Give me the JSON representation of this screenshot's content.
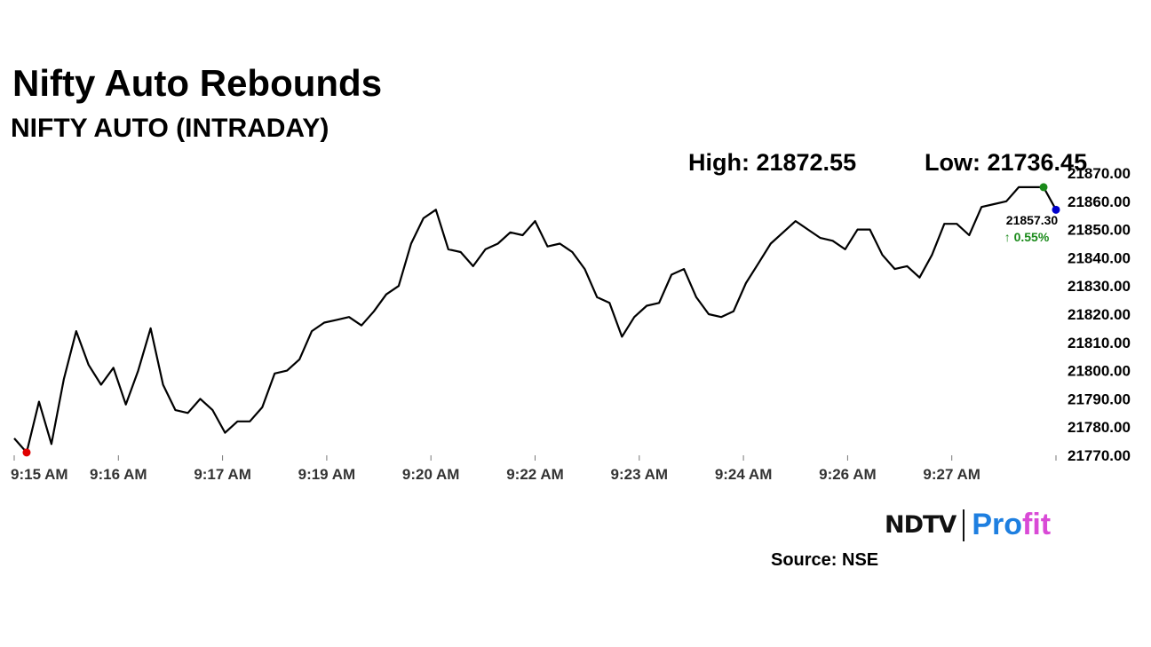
{
  "header": {
    "title": "Nifty Auto Rebounds",
    "subtitle": "NIFTY AUTO (INTRADAY)"
  },
  "stats": {
    "high": "High: 21872.55",
    "low": "Low: 21736.45"
  },
  "brand": {
    "ndtv": "NDTV",
    "profit_a": "Pro",
    "profit_b": "fit"
  },
  "footer": {
    "source": "Source: NSE"
  },
  "colors": {
    "line": "#000000",
    "low_marker": "#e00000",
    "high_marker": "#1a8a1a",
    "last_marker": "#0000cc",
    "change_positive": "#1a8a1a",
    "tick": "#777777"
  },
  "chart_data": {
    "type": "line",
    "title": "NIFTY AUTO (INTRADAY)",
    "xlabel": "",
    "ylabel": "",
    "ylim": [
      21770,
      21870
    ],
    "yticks": [
      21770,
      21780,
      21790,
      21800,
      21810,
      21820,
      21830,
      21840,
      21850,
      21860,
      21870
    ],
    "ytick_labels": [
      "21770.00",
      "21780.00",
      "21790.00",
      "21800.00",
      "21810.00",
      "21820.00",
      "21830.00",
      "21840.00",
      "21850.00",
      "21860.00",
      "21870.00"
    ],
    "xticks": [
      "9:15 AM",
      "9:16 AM",
      "9:17 AM",
      "9:19 AM",
      "9:20 AM",
      "9:22 AM",
      "9:23 AM",
      "9:24 AM",
      "9:26 AM",
      "9:27 AM"
    ],
    "grid": false,
    "series": [
      {
        "values": [
          21776,
          21771,
          21789,
          21774,
          21797,
          21814,
          21802,
          21795,
          21801,
          21788,
          21800,
          21815,
          21795,
          21786,
          21785,
          21790,
          21786,
          21778,
          21782,
          21782,
          21787,
          21799,
          21800,
          21804,
          21814,
          21817,
          21818,
          21819,
          21816,
          21821,
          21827,
          21830,
          21845,
          21854,
          21857,
          21843,
          21842,
          21837,
          21843,
          21845,
          21849,
          21848,
          21853,
          21844,
          21845,
          21842,
          21836,
          21826,
          21824,
          21812,
          21819,
          21823,
          21824,
          21834,
          21836,
          21826,
          21820,
          21819,
          21821,
          21831,
          21838,
          21845,
          21849,
          21853,
          21850,
          21847,
          21846,
          21843,
          21850,
          21850,
          21841,
          21836,
          21837,
          21833,
          21841,
          21852,
          21852,
          21848,
          21858,
          21859,
          21860,
          21865,
          21865,
          21865,
          21857
        ]
      }
    ],
    "markers": {
      "low_index": 1,
      "high_index": 83,
      "last_index": 84
    },
    "last_value_label": "21857.30",
    "change_label": "↑ 0.55%"
  }
}
